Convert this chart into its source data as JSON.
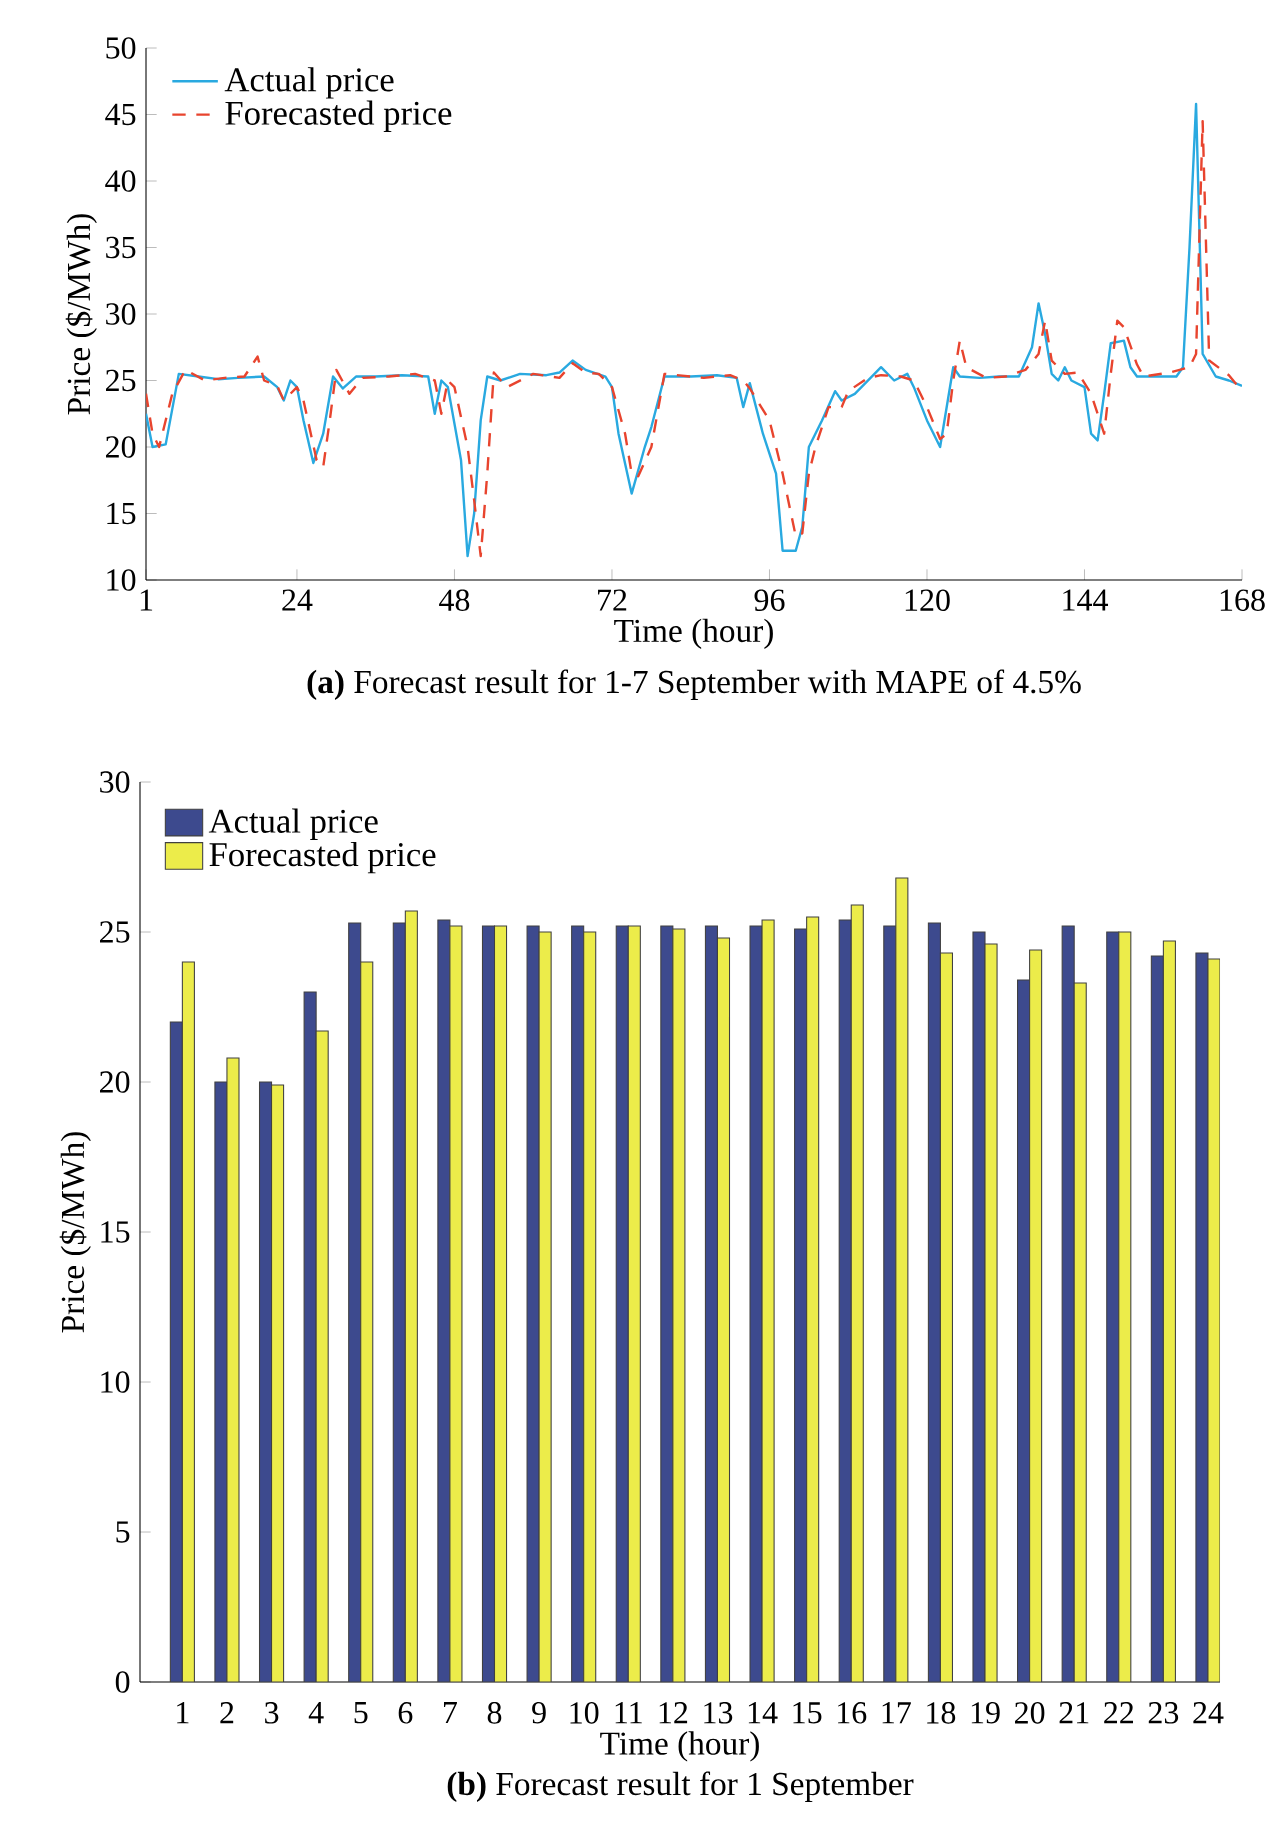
{
  "chart_data": [
    {
      "type": "line",
      "title": "**(a)** Forecast result for 1-7 September with MAPE of 4.5%",
      "xlabel": "Time (hour)",
      "ylabel": "Price ($/MWh)",
      "xlim": [
        1,
        168
      ],
      "xticks": [
        1,
        24,
        48,
        72,
        96,
        120,
        144,
        168
      ],
      "ylim": [
        10,
        50
      ],
      "yticks": [
        10,
        15,
        20,
        25,
        30,
        35,
        40,
        45,
        50
      ],
      "legend": "top left",
      "series": [
        {
          "name": "Actual price",
          "color": "#29a9e0",
          "line_style": "solid",
          "x": [
            1,
            2,
            4,
            6,
            9,
            12,
            15,
            19,
            21,
            22,
            23,
            24,
            25,
            26.5,
            28,
            29.5,
            31,
            33,
            36,
            40,
            44,
            45,
            46,
            47,
            49,
            50,
            51,
            52,
            53,
            55,
            58,
            62,
            64,
            66,
            68,
            71,
            72,
            73,
            75,
            77,
            78,
            80,
            84,
            88,
            91,
            92,
            93,
            95,
            97,
            98,
            100,
            101,
            102,
            104,
            106,
            107,
            109,
            112,
            113,
            115,
            117,
            118,
            120,
            121,
            122,
            123,
            124,
            125,
            128,
            131,
            134,
            136,
            137,
            138,
            139,
            140,
            141,
            142,
            144,
            145,
            146,
            147,
            148,
            150,
            151,
            152,
            155,
            158,
            159,
            160,
            161,
            162,
            164,
            166,
            168
          ],
          "values": [
            22.5,
            20,
            20.2,
            25.5,
            25.3,
            25.1,
            25.2,
            25.3,
            24.5,
            23.5,
            25,
            24.5,
            22,
            18.8,
            21,
            25.3,
            24.4,
            25.3,
            25.3,
            25.4,
            25.3,
            22.5,
            25,
            24.5,
            19,
            11.8,
            15,
            22,
            25.3,
            25,
            25.5,
            25.4,
            25.6,
            26.5,
            25.8,
            25.3,
            24.5,
            21,
            16.5,
            20,
            21.5,
            25.3,
            25.3,
            25.4,
            25.2,
            23,
            24.8,
            21,
            18,
            12.2,
            12.2,
            14,
            20,
            22,
            24.2,
            23.5,
            24,
            25.5,
            26,
            25,
            25.5,
            24.5,
            22,
            21,
            20,
            23,
            26,
            25.3,
            25.2,
            25.3,
            25.3,
            27.5,
            30.8,
            28.5,
            25.5,
            25,
            26,
            25,
            24.5,
            21,
            20.5,
            24,
            27.8,
            28,
            26,
            25.3,
            25.3,
            25.3,
            26,
            35,
            45.8,
            27,
            25.3,
            25,
            24.6
          ]
        },
        {
          "name": "Forecasted price",
          "color": "#e8442e",
          "line_style": "dashed",
          "x": [
            1,
            2,
            3,
            5,
            7,
            10,
            13,
            16,
            18,
            19,
            21,
            22,
            24,
            25,
            27,
            28,
            29,
            30,
            32,
            34,
            38,
            42,
            45,
            46,
            47,
            48,
            50,
            51,
            52,
            53,
            54,
            56,
            60,
            64,
            66,
            68,
            70,
            72,
            74,
            75,
            76,
            78,
            80,
            86,
            90,
            92,
            93,
            96,
            98,
            100,
            101,
            102,
            103,
            105,
            107,
            108,
            111,
            113,
            116,
            118,
            120,
            122,
            123,
            124,
            125,
            126,
            129,
            132,
            135,
            137,
            138,
            139,
            141,
            143,
            145,
            146,
            147,
            148,
            149,
            150,
            152,
            153,
            157,
            160,
            161,
            162,
            163,
            166,
            168
          ],
          "values": [
            24,
            21,
            20,
            24,
            25.8,
            25,
            25.2,
            25.3,
            26.8,
            25,
            24.6,
            23.5,
            24.5,
            23.5,
            19,
            18.5,
            22,
            25.8,
            24,
            25.2,
            25.3,
            25.5,
            25,
            22.5,
            25,
            24.5,
            20,
            16,
            11.8,
            18,
            25.6,
            24.5,
            25.5,
            25.2,
            26.3,
            25.6,
            25.5,
            24.5,
            21,
            18,
            17.8,
            20,
            25.5,
            25.2,
            25.4,
            25,
            24.4,
            22,
            18,
            13.3,
            13.5,
            18,
            20,
            23,
            23,
            24.2,
            25.2,
            25.4,
            25.3,
            25,
            23,
            20.6,
            21,
            25,
            28,
            26,
            25.2,
            25.3,
            25.8,
            27,
            29.5,
            26.5,
            25.5,
            25.6,
            24,
            22.5,
            21,
            25.5,
            29.5,
            29,
            26.2,
            25.3,
            25.6,
            26,
            27,
            44.5,
            26.5,
            25.4,
            24.2
          ]
        }
      ]
    },
    {
      "type": "bar",
      "title": "**(b)** Forecast result for 1 September",
      "xlabel": "Time (hour)",
      "ylabel": "Price ($/MWh)",
      "categories": [
        "1",
        "2",
        "3",
        "4",
        "5",
        "6",
        "7",
        "8",
        "9",
        "10",
        "11",
        "12",
        "13",
        "14",
        "15",
        "16",
        "17",
        "18",
        "19",
        "20",
        "21",
        "22",
        "23",
        "24"
      ],
      "ylim": [
        0,
        30
      ],
      "yticks": [
        0,
        5,
        10,
        15,
        20,
        25,
        30
      ],
      "legend": "top left",
      "series": [
        {
          "name": "Actual price",
          "color": "#3d4a8e",
          "values": [
            22,
            20,
            20,
            23,
            25.3,
            25.3,
            25.4,
            25.2,
            25.2,
            25.2,
            25.2,
            25.2,
            25.2,
            25.2,
            25.1,
            25.4,
            25.2,
            25.3,
            25.0,
            23.4,
            25.2,
            25.0,
            24.2,
            24.3
          ]
        },
        {
          "name": "Forecasted price",
          "color": "#ecec4a",
          "values": [
            24,
            20.8,
            19.9,
            21.7,
            24,
            25.7,
            25.2,
            25.2,
            25.0,
            25.0,
            25.2,
            25.1,
            24.8,
            25.4,
            25.5,
            25.9,
            26.8,
            24.3,
            24.6,
            24.4,
            23.3,
            25.0,
            24.7,
            24.1
          ]
        }
      ]
    }
  ]
}
